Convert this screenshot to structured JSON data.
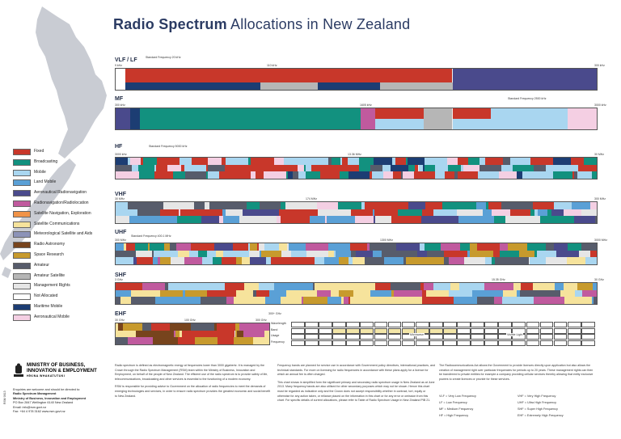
{
  "title": {
    "bold": "Radio Spectrum",
    "rest": " Allocations in New Zealand"
  },
  "colors": {
    "fixed": "#c8372a",
    "broadcasting": "#12917f",
    "mobile": "#a9d6f0",
    "land_mobile": "#5aa0d6",
    "aeronautical_radionavigation": "#4a4a8c",
    "radionavigation": "#c05a9e",
    "satellite_navigation": "#f09348",
    "satellite_communications": "#f6e39c",
    "meteorological": "#8c93b8",
    "radio_astronomy": "#77441d",
    "space_research": "#c79a2d",
    "amateur": "#575c6b",
    "amateur_satellite": "#b6b6b6",
    "management_rights": "#e6e6e6",
    "not_allocated": "#ffffff",
    "maritime_mobile": "#1c3d73",
    "aeronautical_mobile": "#f4cfe3"
  },
  "legend": [
    {
      "key": "fixed",
      "label": "Fixed"
    },
    {
      "key": "broadcasting",
      "label": "Broadcasting"
    },
    {
      "key": "mobile",
      "label": "Mobile"
    },
    {
      "key": "land_mobile",
      "label": "Land Mobile"
    },
    {
      "key": "aeronautical_radionavigation",
      "label": "Aeronautical Radionavigation"
    },
    {
      "key": "radionavigation",
      "label": "Radionavigation/Radiolocation"
    },
    {
      "key": "satellite_navigation",
      "label": "Satellite Navigation, Exploration"
    },
    {
      "key": "satellite_communications",
      "label": "Satellite Communications"
    },
    {
      "key": "meteorological",
      "label": "Meteorological Satellite and Aids"
    },
    {
      "key": "radio_astronomy",
      "label": "Radio Astronomy"
    },
    {
      "key": "space_research",
      "label": "Space Research"
    },
    {
      "key": "amateur",
      "label": "Amateur"
    },
    {
      "key": "amateur_satellite",
      "label": "Amateur Satellite"
    },
    {
      "key": "management_rights",
      "label": "Management Rights"
    },
    {
      "key": "not_allocated",
      "label": "Not Allocated"
    },
    {
      "key": "maritime_mobile",
      "label": "Maritime Mobile"
    },
    {
      "key": "aeronautical_mobile",
      "label": "Aeronautical Mobile"
    }
  ],
  "bands": {
    "vlf_lf": {
      "label": "VLF / LF",
      "start": "9 kHz",
      "mid": "110 kHz",
      "end": "300 kHz",
      "note": "Standard Frequency 20 kHz"
    },
    "mf": {
      "label": "MF",
      "start": "300 kHz",
      "mid": "1605 kHz",
      "end": "3000 kHz",
      "note": "Standard Frequency 2500 kHz"
    },
    "hf": {
      "label": "HF",
      "start": "3000 kHz",
      "mid": "13.36 MHz",
      "end": "30 MHz",
      "note": "Standard Frequency 5000 kHz"
    },
    "vhf": {
      "label": "VHF",
      "start": "30 MHz",
      "mid": "174 MHz",
      "end": "300 MHz"
    },
    "uhf": {
      "label": "UHF",
      "start": "300 MHz",
      "mid": "1300 MHz",
      "end": "3000 MHz",
      "note": "Standard Frequency 400.1 MHz"
    },
    "shf": {
      "label": "SHF",
      "start": "3 GHz",
      "mid": "15.35 GHz",
      "end": "30 GHz"
    },
    "ehf": {
      "label": "EHF",
      "start": "30 GHz",
      "mid": "100 GHz",
      "end": "300 GHz",
      "extra": "300+ GHz"
    }
  },
  "ehf_rows": [
    "Wavelength",
    "Band",
    "Usage",
    "Frequency"
  ],
  "ehf_usage": [
    "Microwave",
    "Visible Light"
  ],
  "paragraphs": {
    "col1": "Radio spectrum is defined as electromagnetic energy at frequencies lower than 3000 gigahertz. It is managed by the Crown through the Radio Spectrum Management (RSM) team within the Ministry of Business, Innovation and Employment, on behalf of the people of New Zealand. The efficient use of the radio spectrum is to provide safety of life, telecommunications, broadcasting and other services is essential to the functioning of a modern economy.",
    "col1b": "RSM is responsible for providing advice to Government on the allocation of radio frequencies to meet the demands of emerging technologies and services, in order to ensure radio spectrum provides the greatest economic and social benefit to New Zealand.",
    "col2": "Frequency bands are planned for service use in accordance with Government policy directives, international practices, and technical standards. For more on licensing for radio frequencies in accordance with these plans apply for a licence for which an annual fee is often charged.",
    "col2b": "This chart shows in simplified form the significant primary and secondary radio spectrum usage in New Zealand as at June 2013. Many frequency bands are also utilised for other secondary purposes which may not be shown. Hence this chart must be regarded as indicative only and the Crown does not accept responsibility whether in contract, tort, equity or otherwise for any action taken, or reliance placed on the information in this chart or for any error or omission from this chart. For specific details of current allocations, please refer to Table of Radio Spectrum Usage in New Zealand PIB 21.",
    "col3": "The Radiocommunications Act allows the Government to provide licences directly upon application but also allows the creation of management right over particular frequencies for periods up to 20 years. These management rights can then be transferred to private entities for example a company providing cellular services thereby allowing that entity exclusive powers to create licences or provide for these services."
  },
  "abbreviations": [
    "VLF = Very Low Frequency",
    "LF = Low Frequency",
    "MF = Medium Frequency",
    "HF = High Frequency",
    "VHF = Very High Frequency",
    "UHF = Ultra High Frequency",
    "SHF = Super High Frequency",
    "EHF = Extremely High Frequency"
  ],
  "ministry": {
    "line1": "MINISTRY OF BUSINESS,",
    "line2": "INNOVATION & EMPLOYMENT",
    "line3": "HĪKINA WHAKATUTUKI"
  },
  "contact": {
    "intro": "Enquiries are welcome and should be directed to:",
    "org": "Radio Spectrum Management",
    "org2": "Ministry of Business, Innovation and Employment",
    "address": "PO Box 2847 Wellington 6140 New Zealand",
    "email": "Email: info@rsm.govt.nz",
    "fax": "Fax: +64 4 978 3162   www.rsm.govt.nz"
  },
  "print_ref": "RSM 0613"
}
